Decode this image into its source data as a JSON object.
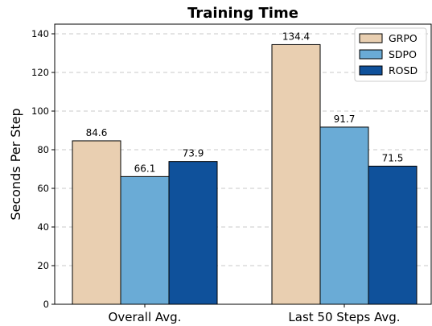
{
  "chart_data": {
    "type": "bar",
    "title": "Training Time",
    "xlabel": "",
    "ylabel": "Seconds Per Step",
    "categories": [
      "Overall Avg.",
      "Last 50 Steps Avg."
    ],
    "series": [
      {
        "name": "GRPO",
        "values": [
          84.6,
          134.4
        ],
        "color": "#e9cfb1"
      },
      {
        "name": "SDPO",
        "values": [
          66.1,
          91.7
        ],
        "color": "#6aabd6"
      },
      {
        "name": "ROSD",
        "values": [
          73.9,
          71.5
        ],
        "color": "#0f519b"
      }
    ],
    "data_labels": [
      [
        "84.6",
        "134.4"
      ],
      [
        "66.1",
        "91.7"
      ],
      [
        "73.9",
        "71.5"
      ]
    ],
    "ylim": [
      0,
      145
    ],
    "yticks": [
      0,
      20,
      40,
      60,
      80,
      100,
      120,
      140
    ],
    "grid": true,
    "legend_position": "top-right"
  }
}
